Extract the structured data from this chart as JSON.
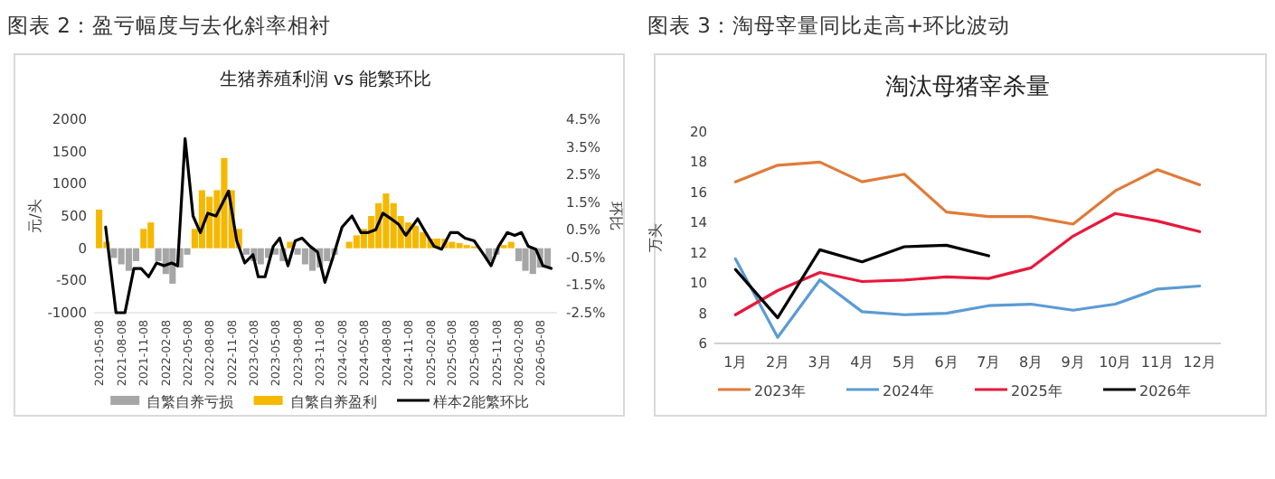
{
  "chart_data": [
    {
      "type": "bar",
      "title": "图表 2：盈亏幅度与去化斜率相衬",
      "subtitle": "生猪养殖利润 vs 能繁环比",
      "ylabel": "元/头",
      "y2label": "环比",
      "x": [
        "2021-05-08",
        "2021-06-08",
        "2021-07-08",
        "2021-08-08",
        "2021-09-08",
        "2021-10-08",
        "2021-11-08",
        "2021-12-08",
        "2022-01-08",
        "2022-02-08",
        "2022-03-08",
        "2022-04-08",
        "2022-05-08",
        "2022-06-08",
        "2022-07-08",
        "2022-08-08",
        "2022-09-08",
        "2022-10-08",
        "2022-11-08",
        "2022-12-08",
        "2023-01-08",
        "2023-02-08",
        "2023-03-08",
        "2023-04-08",
        "2023-05-08",
        "2023-06-08",
        "2023-07-08",
        "2023-08-08",
        "2023-09-08",
        "2023-10-08",
        "2023-11-08",
        "2023-12-08",
        "2024-01-08",
        "2024-02-08",
        "2024-03-08",
        "2024-04-08",
        "2024-05-08",
        "2024-06-08",
        "2024-07-08",
        "2024-08-08",
        "2024-09-08",
        "2024-10-08",
        "2024-11-08",
        "2024-12-08",
        "2025-01-08",
        "2025-02-08",
        "2025-03-08",
        "2025-04-08",
        "2025-05-08",
        "2025-06-08",
        "2025-07-08",
        "2025-08-08",
        "2025-09-08",
        "2025-10-08",
        "2025-11-08",
        "2025-12-08",
        "2026-01-08",
        "2026-02-08",
        "2026-03-08",
        "2026-04-08",
        "2026-05-08",
        "2026-06-08"
      ],
      "series": [
        {
          "name": "自繁自养亏损",
          "color": "#a6a6a6",
          "values": [
            null,
            null,
            -150,
            -250,
            -350,
            -200,
            null,
            null,
            -200,
            -400,
            -550,
            -300,
            -100,
            null,
            null,
            null,
            null,
            null,
            null,
            null,
            -100,
            -200,
            -250,
            -150,
            -100,
            -200,
            null,
            -100,
            -250,
            -350,
            -300,
            -200,
            -100,
            null,
            null,
            null,
            null,
            null,
            null,
            null,
            null,
            null,
            null,
            null,
            null,
            null,
            null,
            null,
            null,
            null,
            null,
            null,
            null,
            -200,
            -100,
            null,
            null,
            -200,
            -350,
            -400,
            -300,
            -300
          ]
        },
        {
          "name": "自繁自养盈利",
          "color": "#f5b800",
          "values": [
            600,
            100,
            null,
            null,
            null,
            null,
            300,
            400,
            null,
            null,
            null,
            null,
            null,
            300,
            900,
            800,
            900,
            1400,
            900,
            300,
            null,
            null,
            null,
            null,
            null,
            null,
            100,
            null,
            null,
            null,
            null,
            null,
            null,
            null,
            100,
            200,
            300,
            500,
            700,
            850,
            700,
            500,
            400,
            350,
            250,
            150,
            150,
            150,
            100,
            80,
            50,
            30,
            null,
            null,
            null,
            50,
            100,
            null,
            null,
            null,
            null,
            null
          ]
        },
        {
          "name": "样本2能繁环比",
          "type": "line",
          "axis": "y2",
          "color": "#000000",
          "x": [
            "2021-06-04",
            "2021-07-17",
            "2021-08-23",
            "2021-09-29",
            "2021-10-29",
            "2021-11-29",
            "2022-01-01",
            "2022-02-01",
            "2022-03-04",
            "2022-03-29",
            "2022-04-29",
            "2022-06-01",
            "2022-07-01",
            "2022-08-01",
            "2022-09-04",
            "2022-10-26",
            "2022-11-29",
            "2023-01-01",
            "2023-02-04",
            "2023-02-26",
            "2023-03-26",
            "2023-04-29",
            "2023-05-26",
            "2023-06-29",
            "2023-07-29",
            "2023-08-26",
            "2023-09-29",
            "2023-10-29",
            "2023-11-29",
            "2024-01-01",
            "2024-02-08",
            "2024-03-20",
            "2024-04-26",
            "2024-05-26",
            "2024-06-26",
            "2024-07-26",
            "2024-08-29",
            "2024-09-29",
            "2024-10-29",
            "2024-12-17",
            "2025-01-26",
            "2025-02-23",
            "2025-03-26",
            "2025-05-02",
            "2025-06-01",
            "2025-07-01",
            "2025-08-08",
            "2025-09-17",
            "2025-10-17",
            "2025-11-17",
            "2025-12-23",
            "2026-01-23",
            "2026-02-20",
            "2026-03-20",
            "2026-04-20",
            "2026-05-20",
            "2026-06-23"
          ],
          "values": [
            0.6,
            -2.5,
            -2.5,
            -0.9,
            -0.9,
            -1.2,
            -0.7,
            -0.8,
            -0.7,
            -0.8,
            3.8,
            1.0,
            0.4,
            1.1,
            1.0,
            1.9,
            0.1,
            -0.7,
            -0.4,
            -1.2,
            -1.2,
            -0.1,
            0.2,
            -0.8,
            0.1,
            0.2,
            -0.1,
            -0.3,
            -1.4,
            -0.5,
            0.6,
            1.0,
            0.4,
            0.4,
            0.5,
            1.1,
            0.9,
            0.7,
            0.3,
            0.9,
            0.3,
            -0.1,
            -0.2,
            0.4,
            0.4,
            0.2,
            0.1,
            -0.4,
            -0.8,
            -0.1,
            0.4,
            0.3,
            0.4,
            -0.1,
            -0.2,
            -0.8,
            -0.9
          ]
        }
      ],
      "xlim": [
        "2021-04-17",
        "2026-07-17"
      ],
      "xticks": [
        "2021-05-08",
        "2021-08-08",
        "2021-11-08",
        "2022-02-08",
        "2022-05-08",
        "2022-08-08",
        "2022-11-08",
        "2023-02-08",
        "2023-05-08",
        "2023-08-08",
        "2023-11-08",
        "2024-02-08",
        "2024-05-08",
        "2024-08-08",
        "2024-11-08",
        "2025-02-08",
        "2025-05-08",
        "2025-08-08",
        "2025-11-08",
        "2026-02-08",
        "2026-05-08"
      ],
      "ylim": [
        -1000,
        2000
      ],
      "yticks": [
        -1000,
        -500,
        0,
        500,
        1000,
        1500,
        2000
      ],
      "y2lim": [
        -2.5,
        4.5
      ],
      "y2ticks": [
        {
          "value": -2.5,
          "label": "-2.5%"
        },
        {
          "value": -1.5,
          "label": "-1.5%"
        },
        {
          "value": -0.5,
          "label": "-0.5%"
        },
        {
          "value": 0.5,
          "label": "0.5%"
        },
        {
          "value": 1.5,
          "label": "1.5%"
        },
        {
          "value": 2.5,
          "label": "2.5%"
        },
        {
          "value": 3.5,
          "label": "3.5%"
        },
        {
          "value": 4.5,
          "label": "4.5%"
        }
      ],
      "legend": "bottom"
    },
    {
      "type": "line",
      "title": "图表 3：淘母宰量同比走高+环比波动",
      "subtitle": "淘汰母猪宰杀量",
      "ylabel": "万头",
      "categories": [
        "1月",
        "2月",
        "3月",
        "4月",
        "5月",
        "6月",
        "7月",
        "8月",
        "9月",
        "10月",
        "11月",
        "12月"
      ],
      "series": [
        {
          "name": "2023年",
          "color": "#e07b39",
          "values": [
            16.7,
            17.8,
            18.0,
            16.7,
            17.2,
            14.7,
            14.4,
            14.4,
            13.9,
            16.1,
            17.5,
            16.5
          ]
        },
        {
          "name": "2024年",
          "color": "#5b9bd5",
          "values": [
            11.6,
            6.4,
            10.2,
            8.1,
            7.9,
            8.0,
            8.5,
            8.6,
            8.2,
            8.6,
            9.6,
            9.8
          ]
        },
        {
          "name": "2025年",
          "color": "#e8183c",
          "values": [
            7.9,
            9.5,
            10.7,
            10.1,
            10.2,
            10.4,
            10.3,
            11.0,
            13.1,
            14.6,
            14.1,
            13.4
          ]
        },
        {
          "name": "2026年",
          "color": "#000000",
          "values": [
            10.9,
            7.7,
            12.2,
            11.4,
            12.4,
            12.5,
            11.8,
            null,
            null,
            null,
            null,
            null
          ]
        }
      ],
      "ylim": [
        6,
        20
      ],
      "yticks": [
        6,
        8,
        10,
        12,
        14,
        16,
        18,
        20
      ],
      "legend": "bottom"
    }
  ]
}
